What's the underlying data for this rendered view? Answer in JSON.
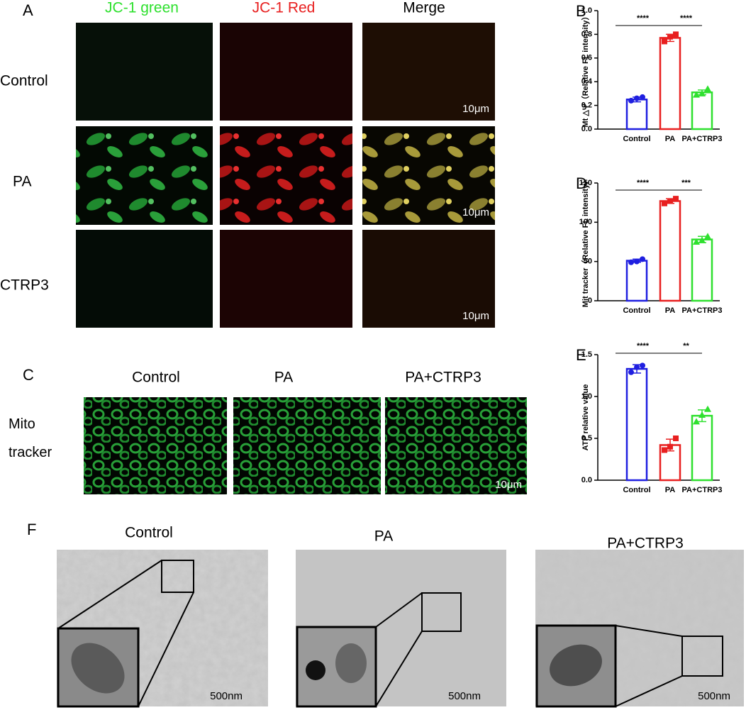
{
  "panel_a": {
    "label": "A",
    "columns": [
      "JC-1 green",
      "JC-1 Red",
      "Merge"
    ],
    "rows": [
      "Control",
      "PA",
      "CTRP3"
    ],
    "scale_bar": "10μm"
  },
  "panel_c": {
    "label": "C",
    "columns": [
      "Control",
      "PA",
      "PA+CTRP3"
    ],
    "row_label": "Mito tracker",
    "scale_bar": "10μm"
  },
  "panel_f": {
    "label": "F",
    "columns": [
      "Control",
      "PA",
      "PA+CTRP3"
    ],
    "scale_bar": "500nm"
  },
  "chart_data": [
    {
      "type": "bar",
      "label": "B",
      "y_label": "Mt △Ψ（Relative FL intensity）",
      "categories": [
        "Control",
        "PA",
        "PA+CTRP3"
      ],
      "colors": [
        "#1f1fe0",
        "#e82020",
        "#2fe02f"
      ],
      "values": [
        0.25,
        0.77,
        0.31
      ],
      "errors": [
        0.02,
        0.03,
        0.02
      ],
      "points": [
        [
          0.24,
          0.26,
          0.27
        ],
        [
          0.74,
          0.78,
          0.8
        ],
        [
          0.29,
          0.3,
          0.34
        ]
      ],
      "ylim": [
        0,
        1
      ],
      "yticks": [
        {
          "value": 0,
          "label": "0.0"
        },
        {
          "value": 0.2,
          "label": "0.2"
        },
        {
          "value": 0.4,
          "label": "0.4"
        },
        {
          "value": 0.6,
          "label": "0.6"
        },
        {
          "value": 0.8,
          "label": "0.8"
        },
        {
          "value": 1,
          "label": "1.0"
        }
      ],
      "annotations": [
        "****",
        "****"
      ]
    },
    {
      "type": "bar",
      "label": "D",
      "y_label": "Mit tracker（Relative FL intensity）",
      "categories": [
        "Control",
        "PA",
        "PA+CTRP3"
      ],
      "colors": [
        "#1f1fe0",
        "#e82020",
        "#2fe02f"
      ],
      "values": [
        51,
        127,
        78
      ],
      "errors": [
        2,
        3,
        4
      ],
      "points": [
        [
          49,
          50,
          53
        ],
        [
          124,
          127,
          130
        ],
        [
          75,
          77,
          82
        ]
      ],
      "ylim": [
        0,
        150
      ],
      "yticks": [
        0,
        50,
        100,
        150
      ],
      "annotations": [
        "****",
        "***"
      ]
    },
    {
      "type": "bar",
      "label": "E",
      "y_label": "ATP relative value",
      "categories": [
        "Control",
        "PA",
        "PA+CTRP3"
      ],
      "colors": [
        "#1f1fe0",
        "#e82020",
        "#2fe02f"
      ],
      "values": [
        1.33,
        0.42,
        0.77
      ],
      "errors": [
        0.05,
        0.07,
        0.07
      ],
      "points": [
        [
          1.29,
          1.35,
          1.37
        ],
        [
          0.36,
          0.4,
          0.5
        ],
        [
          0.7,
          0.78,
          0.85
        ]
      ],
      "ylim": [
        0,
        1.5
      ],
      "yticks": [
        {
          "value": 0,
          "label": "0.0"
        },
        {
          "value": 0.5,
          "label": "0.5"
        },
        {
          "value": 1,
          "label": "1.0"
        },
        {
          "value": 1.5,
          "label": "1.5"
        }
      ],
      "annotations": [
        "****",
        "**"
      ]
    }
  ]
}
